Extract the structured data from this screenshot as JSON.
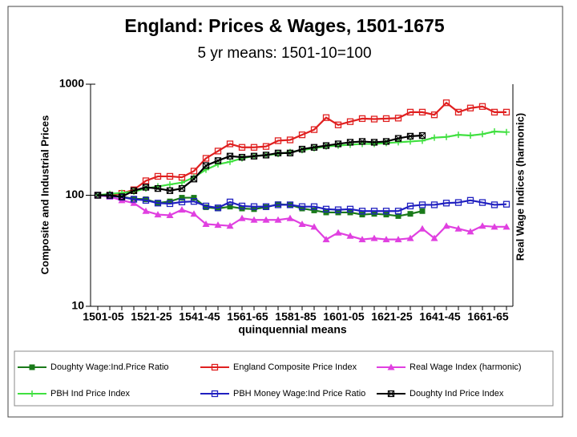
{
  "chart_data": {
    "type": "line",
    "title": "England: Prices & Wages, 1501-1675",
    "subtitle": "5 yr means: 1501-10=100",
    "x_label": "quinquennial means",
    "y_label": "Composite and Industrial Prices",
    "y2_label": "Real Wage Indices (harmonic)",
    "log_scale": true,
    "ylim": [
      10,
      1000
    ],
    "yticks": [
      10,
      100,
      1000
    ],
    "categories": [
      "1501-05",
      null,
      null,
      null,
      "1521-25",
      null,
      null,
      null,
      "1541-45",
      null,
      null,
      null,
      "1561-65",
      null,
      null,
      null,
      "1581-85",
      null,
      null,
      null,
      "1601-05",
      null,
      null,
      null,
      "1621-25",
      null,
      null,
      null,
      "1641-45",
      null,
      null,
      null,
      "1661-65",
      null,
      null
    ],
    "series": [
      {
        "name": "Doughty Wage:Ind.Price Ratio",
        "color": "#1a7a1a",
        "marker": "filled-square",
        "values": [
          100,
          98,
          97,
          93,
          92,
          85,
          88,
          95,
          95,
          78,
          76,
          79,
          76,
          75,
          78,
          83,
          82,
          76,
          73,
          70,
          70,
          70,
          67,
          68,
          67,
          65,
          68,
          72,
          null,
          null,
          null,
          null,
          null,
          null,
          null
        ]
      },
      {
        "name": "England Composite Price Index",
        "color": "#e02020",
        "marker": "open-square",
        "values": [
          100,
          100,
          104,
          112,
          135,
          148,
          148,
          145,
          165,
          215,
          250,
          290,
          270,
          270,
          275,
          310,
          315,
          350,
          390,
          500,
          430,
          460,
          490,
          485,
          490,
          495,
          560,
          560,
          530,
          680,
          560,
          610,
          630,
          560,
          560
        ]
      },
      {
        "name": "Real Wage Index (harmonic)",
        "color": "#e040e0",
        "marker": "triangle",
        "values": [
          100,
          97,
          90,
          85,
          72,
          67,
          66,
          74,
          68,
          55,
          54,
          53,
          62,
          60,
          60,
          60,
          62,
          55,
          52,
          40,
          46,
          43,
          40,
          41,
          40,
          40,
          41,
          50,
          41,
          53,
          50,
          47,
          53,
          52,
          52
        ]
      },
      {
        "name": "PBH Ind Price Index",
        "color": "#40e040",
        "marker": "plus",
        "values": [
          100,
          103,
          105,
          108,
          115,
          120,
          125,
          130,
          145,
          170,
          190,
          200,
          215,
          225,
          230,
          235,
          245,
          255,
          265,
          275,
          280,
          285,
          290,
          290,
          295,
          300,
          305,
          310,
          330,
          335,
          350,
          345,
          355,
          375,
          370
        ]
      },
      {
        "name": "PBH Money Wage:Ind Price Ratio",
        "color": "#2020c0",
        "marker": "open-square",
        "values": [
          100,
          99,
          96,
          92,
          90,
          85,
          84,
          87,
          88,
          80,
          77,
          87,
          80,
          79,
          79,
          82,
          82,
          79,
          79,
          75,
          74,
          75,
          72,
          72,
          72,
          72,
          80,
          82,
          82,
          85,
          86,
          90,
          86,
          82,
          83
        ]
      },
      {
        "name": "Doughty Ind Price Index",
        "color": "#000000",
        "marker": "open-square-x",
        "values": [
          100,
          100,
          97,
          110,
          118,
          115,
          110,
          115,
          140,
          185,
          205,
          225,
          220,
          225,
          230,
          240,
          240,
          260,
          270,
          280,
          290,
          300,
          305,
          300,
          305,
          325,
          340,
          345,
          null,
          null,
          null,
          null,
          null,
          null,
          null
        ]
      }
    ]
  }
}
